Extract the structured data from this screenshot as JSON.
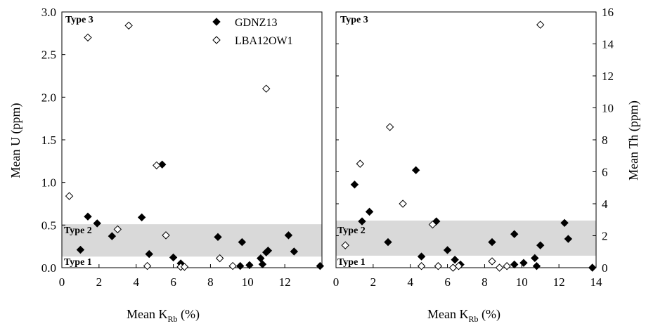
{
  "chart_data": [
    {
      "type": "scatter",
      "xlabel": "Mean K",
      "xlabel_sub": "Rb",
      "xlabel_unit": " (%)",
      "ylabel": "Mean U (ppm)",
      "xlim": [
        0,
        14
      ],
      "ylim": [
        0,
        3.0
      ],
      "x_ticks": [
        0,
        2,
        4,
        6,
        8,
        10,
        12
      ],
      "y_ticks": [
        "0.0",
        "0.5",
        "1.0",
        "1.5",
        "2.0",
        "2.5",
        "3.0"
      ],
      "shaded_band": [
        0.13,
        0.51
      ],
      "regions": [
        "Type 3",
        "Type 2",
        "Type 1"
      ],
      "legend": {
        "placement": "top-right",
        "entries": [
          "GDNZ13",
          "LBA12OW1"
        ]
      },
      "series": [
        {
          "name": "GDNZ13",
          "marker": "filled-diamond",
          "points": [
            [
              1.0,
              0.21
            ],
            [
              1.4,
              0.6
            ],
            [
              1.9,
              0.52
            ],
            [
              2.7,
              0.37
            ],
            [
              4.3,
              0.59
            ],
            [
              4.7,
              0.16
            ],
            [
              5.4,
              1.21
            ],
            [
              6.0,
              0.12
            ],
            [
              6.4,
              0.05
            ],
            [
              8.4,
              0.36
            ],
            [
              9.7,
              0.3
            ],
            [
              9.6,
              0.02
            ],
            [
              10.1,
              0.03
            ],
            [
              10.7,
              0.11
            ],
            [
              10.8,
              0.04
            ],
            [
              11.0,
              0.18
            ],
            [
              11.1,
              0.2
            ],
            [
              12.2,
              0.38
            ],
            [
              12.5,
              0.19
            ],
            [
              13.9,
              0.02
            ]
          ]
        },
        {
          "name": "LBA12OW1",
          "marker": "open-diamond",
          "points": [
            [
              0.4,
              0.84
            ],
            [
              1.4,
              2.7
            ],
            [
              3.0,
              0.45
            ],
            [
              3.6,
              2.84
            ],
            [
              4.6,
              0.02
            ],
            [
              5.1,
              1.2
            ],
            [
              5.6,
              0.38
            ],
            [
              6.4,
              0.01
            ],
            [
              6.6,
              0.01
            ],
            [
              8.5,
              0.11
            ],
            [
              9.2,
              0.02
            ],
            [
              11.0,
              2.1
            ]
          ]
        }
      ]
    },
    {
      "type": "scatter",
      "xlabel": "Mean K",
      "xlabel_sub": "Rb",
      "xlabel_unit": " (%)",
      "ylabel": "Mean Th (ppm)",
      "xlim": [
        0,
        14
      ],
      "ylim": [
        0,
        16
      ],
      "x_ticks": [
        "0",
        "2",
        "4",
        "6",
        "8",
        "10",
        "12",
        "14"
      ],
      "y_ticks": [
        "0",
        "2",
        "4",
        "6",
        "8",
        "10",
        "12",
        "14",
        "16"
      ],
      "shaded_band": [
        0.75,
        2.95
      ],
      "regions": [
        "Type 3",
        "Type 2",
        "Type 1"
      ],
      "series": [
        {
          "name": "GDNZ13",
          "marker": "filled-diamond",
          "points": [
            [
              1.0,
              5.2
            ],
            [
              1.4,
              2.9
            ],
            [
              1.8,
              3.5
            ],
            [
              2.8,
              1.6
            ],
            [
              4.3,
              6.1
            ],
            [
              4.6,
              0.7
            ],
            [
              5.4,
              2.9
            ],
            [
              6.0,
              1.1
            ],
            [
              6.4,
              0.5
            ],
            [
              6.7,
              0.2
            ],
            [
              8.4,
              1.6
            ],
            [
              9.6,
              2.1
            ],
            [
              9.6,
              0.2
            ],
            [
              10.1,
              0.3
            ],
            [
              10.7,
              0.6
            ],
            [
              10.8,
              0.1
            ],
            [
              11.0,
              1.4
            ],
            [
              12.3,
              2.8
            ],
            [
              12.5,
              1.8
            ],
            [
              13.8,
              0.0
            ]
          ]
        },
        {
          "name": "LBA12OW1",
          "marker": "open-diamond",
          "points": [
            [
              0.5,
              1.4
            ],
            [
              1.3,
              6.5
            ],
            [
              2.9,
              8.8
            ],
            [
              3.6,
              4.0
            ],
            [
              4.6,
              0.1
            ],
            [
              5.2,
              2.7
            ],
            [
              5.5,
              0.1
            ],
            [
              6.3,
              0.0
            ],
            [
              6.6,
              0.1
            ],
            [
              8.4,
              0.4
            ],
            [
              8.8,
              0.0
            ],
            [
              9.2,
              0.1
            ],
            [
              11.0,
              15.2
            ]
          ]
        }
      ]
    }
  ]
}
